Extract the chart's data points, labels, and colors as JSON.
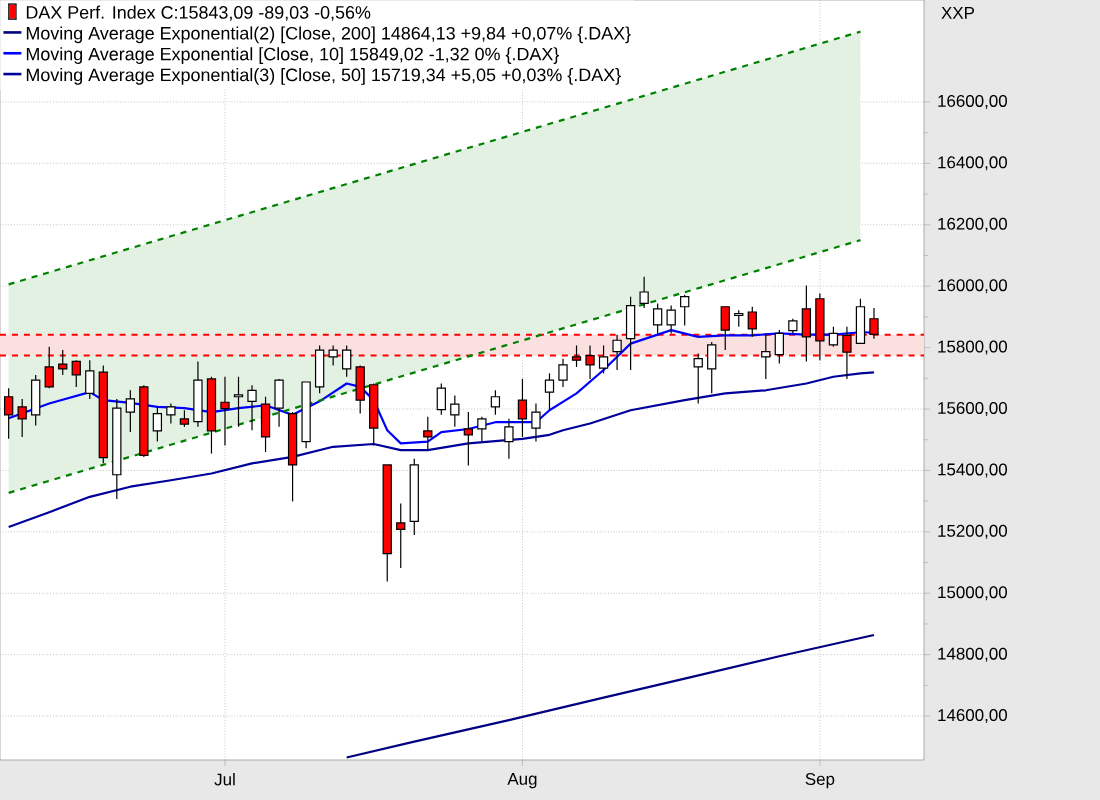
{
  "chart_data": {
    "type": "candlestick",
    "categories": [
      null,
      null,
      null,
      null,
      null,
      null,
      null,
      null,
      null,
      null,
      null,
      null,
      null,
      null,
      null,
      null,
      "Jul",
      null,
      null,
      null,
      null,
      null,
      null,
      null,
      null,
      null,
      null,
      null,
      null,
      null,
      null,
      null,
      null,
      null,
      null,
      null,
      null,
      null,
      "Aug",
      null,
      null,
      null,
      null,
      null,
      null,
      null,
      null,
      null,
      null,
      null,
      null,
      null,
      null,
      null,
      null,
      null,
      null,
      null,
      null,
      null,
      "Sep",
      null,
      null,
      null,
      null
    ],
    "ylim": [
      14457,
      16932
    ],
    "yticks": [
      {
        "value": 14600,
        "label": "14600,00"
      },
      {
        "value": 14800,
        "label": "14800,00"
      },
      {
        "value": 15000,
        "label": "15000,00"
      },
      {
        "value": 15200,
        "label": "15200,00"
      },
      {
        "value": 15400,
        "label": "15400,00"
      },
      {
        "value": 15600,
        "label": "15600,00"
      },
      {
        "value": 15800,
        "label": "15800,00"
      },
      {
        "value": 16000,
        "label": "16000,00"
      },
      {
        "value": 16200,
        "label": "16200,00"
      },
      {
        "value": 16400,
        "label": "16400,00"
      },
      {
        "value": 16600,
        "label": "16600,00"
      }
    ],
    "ylabel": "XXP",
    "grid": true,
    "legend": "top left",
    "series": [
      {
        "name": "DAX Perf. Index C:15843,09 -89,03 -0,56%",
        "colors": [
          "#ff0000",
          "#ff0000",
          "#ffffff",
          "#ff0000",
          "#ff0000",
          "#ff0000",
          "#ffffff",
          "#ff0000",
          "#ffffff",
          "#ffffff",
          "#ff0000",
          "#ffffff",
          "#ffffff",
          "#ff0000",
          "#ffffff",
          "#ff0000",
          "#ff0000",
          "#ffffff",
          "#ffffff",
          "#ff0000",
          "#ffffff",
          "#ff0000",
          "#ffffff",
          "#ffffff",
          "#ffffff",
          "#ffffff",
          "#ff0000",
          "#ff0000",
          "#ff0000",
          "#ff0000",
          "#ffffff",
          "#ff0000",
          "#ffffff",
          "#ffffff",
          "#ff0000",
          "#ffffff",
          "#ffffff",
          "#ffffff",
          "#ff0000",
          "#ffffff",
          "#ffffff",
          "#ffffff",
          "#ff0000",
          "#ff0000",
          "#ffffff",
          "#ffffff",
          "#ffffff",
          "#ffffff",
          "#ffffff",
          "#ffffff",
          "#ffffff",
          "#ffffff",
          "#ffffff",
          "#ff0000",
          "#ffffff",
          "#ff0000",
          "#ffffff",
          "#ffffff",
          "#ffffff",
          "#ff0000",
          "#ff0000",
          "#ffffff",
          "#ff0000",
          "#ffffff",
          "#ff0000"
        ],
        "ohlc": [
          [
            15640,
            15668,
            15503,
            15581
          ],
          [
            15607,
            15633,
            15509,
            15568
          ],
          [
            15581,
            15711,
            15546,
            15694
          ],
          [
            15737,
            15803,
            15668,
            15672
          ],
          [
            15746,
            15792,
            15711,
            15731
          ],
          [
            15755,
            15759,
            15672,
            15711
          ],
          [
            15651,
            15759,
            15633,
            15724
          ],
          [
            15720,
            15742,
            15423,
            15442
          ],
          [
            15386,
            15633,
            15307,
            15603
          ],
          [
            15590,
            15661,
            15525,
            15633
          ],
          [
            15672,
            15677,
            15444,
            15449
          ],
          [
            15529,
            15607,
            15494,
            15585
          ],
          [
            15581,
            15618,
            15553,
            15607
          ],
          [
            15568,
            15596,
            15542,
            15551
          ],
          [
            15559,
            15755,
            15542,
            15694
          ],
          [
            15698,
            15705,
            15455,
            15529
          ],
          [
            15622,
            15705,
            15481,
            15601
          ],
          [
            15640,
            15705,
            15542,
            15646
          ],
          [
            15625,
            15677,
            15531,
            15661
          ],
          [
            15616,
            15640,
            15460,
            15509
          ],
          [
            15603,
            15698,
            15542,
            15694
          ],
          [
            15585,
            15590,
            15299,
            15418
          ],
          [
            15494,
            15688,
            15472,
            15688
          ],
          [
            15672,
            15807,
            15651,
            15792
          ],
          [
            15770,
            15807,
            15742,
            15792
          ],
          [
            15731,
            15807,
            15705,
            15792
          ],
          [
            15737,
            15742,
            15585,
            15629
          ],
          [
            15679,
            15683,
            15481,
            15538
          ],
          [
            15418,
            15418,
            15038,
            15129
          ],
          [
            15229,
            15292,
            15082,
            15208
          ],
          [
            15234,
            15438,
            15190,
            15418
          ],
          [
            15529,
            15575,
            15466,
            15509
          ],
          [
            15598,
            15683,
            15581,
            15668
          ],
          [
            15581,
            15644,
            15542,
            15616
          ],
          [
            15535,
            15590,
            15416,
            15516
          ],
          [
            15535,
            15575,
            15494,
            15568
          ],
          [
            15607,
            15661,
            15581,
            15640
          ],
          [
            15494,
            15568,
            15438,
            15542
          ],
          [
            15629,
            15698,
            15509,
            15568
          ],
          [
            15538,
            15618,
            15494,
            15590
          ],
          [
            15655,
            15716,
            15596,
            15694
          ],
          [
            15694,
            15764,
            15672,
            15744
          ],
          [
            15770,
            15807,
            15737,
            15759
          ],
          [
            15774,
            15807,
            15698,
            15744
          ],
          [
            15733,
            15807,
            15716,
            15770
          ],
          [
            15787,
            15842,
            15727,
            15824
          ],
          [
            15829,
            15966,
            15727,
            15937
          ],
          [
            15944,
            16031,
            15929,
            15981
          ],
          [
            15874,
            15944,
            15846,
            15926
          ],
          [
            15874,
            15937,
            15846,
            15922
          ],
          [
            15933,
            15972,
            15872,
            15966
          ],
          [
            15737,
            15781,
            15618,
            15764
          ],
          [
            15731,
            15818,
            15651,
            15809
          ],
          [
            15933,
            15933,
            15792,
            15857
          ],
          [
            15905,
            15922,
            15868,
            15911
          ],
          [
            15916,
            15933,
            15835,
            15861
          ],
          [
            15770,
            15846,
            15698,
            15787
          ],
          [
            15777,
            15857,
            15748,
            15846
          ],
          [
            15855,
            15894,
            15846,
            15887
          ],
          [
            15926,
            16002,
            15755,
            15835
          ],
          [
            15959,
            15976,
            15759,
            15822
          ],
          [
            15809,
            15868,
            15803,
            15846
          ],
          [
            15840,
            15868,
            15698,
            15785
          ],
          [
            15814,
            15959,
            15814,
            15933
          ],
          [
            15894,
            15929,
            15829,
            15843
          ]
        ]
      },
      {
        "name": "Moving Average Exponential(2) [Close, 200] 14864,13 +9,84 +0,07% {.DAX}",
        "type": "line",
        "color": "#000080",
        "values": [
          null,
          null,
          null,
          null,
          null,
          null,
          null,
          null,
          null,
          null,
          null,
          null,
          null,
          null,
          null,
          null,
          null,
          null,
          null,
          null,
          null,
          null,
          null,
          null,
          null,
          14465,
          null,
          null,
          null,
          null,
          14517,
          null,
          null,
          null,
          null,
          null,
          null,
          14587,
          null,
          null,
          null,
          null,
          null,
          null,
          14660,
          null,
          null,
          null,
          null,
          null,
          14722,
          null,
          null,
          null,
          null,
          null,
          null,
          14795,
          null,
          null,
          null,
          null,
          null,
          null,
          14864
        ]
      },
      {
        "name": "Moving Average Exponential [Close, 10] 15849,02 -1,32 0% {.DAX}",
        "type": "line",
        "color": "#0000ff",
        "values": [
          15570,
          null,
          null,
          15618,
          null,
          null,
          15655,
          15629,
          null,
          15620,
          null,
          15607,
          null,
          15603,
          null,
          15590,
          null,
          15603,
          null,
          15612,
          null,
          15581,
          null,
          15625,
          null,
          15683,
          15672,
          15629,
          15531,
          15488,
          null,
          15494,
          15525,
          null,
          15535,
          null,
          15557,
          null,
          null,
          15557,
          15596,
          null,
          15651,
          null,
          15727,
          null,
          15813,
          null,
          null,
          15857,
          null,
          15835,
          null,
          15840,
          null,
          15840,
          null,
          15846,
          null,
          15842,
          null,
          15842,
          null,
          15850,
          15849
        ]
      },
      {
        "name": "Moving Average Exponential(3) [Close, 50] 15719,34 +5,05 +0,03% {.DAX}",
        "type": "line",
        "color": "#00009a",
        "values": [
          15216,
          null,
          null,
          15264,
          null,
          null,
          15314,
          null,
          null,
          15347,
          null,
          null,
          15368,
          null,
          null,
          15390,
          null,
          null,
          15423,
          null,
          null,
          15444,
          null,
          null,
          15477,
          null,
          null,
          15486,
          null,
          15466,
          null,
          15466,
          null,
          null,
          15488,
          null,
          null,
          null,
          15503,
          null,
          15516,
          15531,
          null,
          15553,
          null,
          null,
          15596,
          null,
          null,
          null,
          15629,
          null,
          null,
          15651,
          null,
          null,
          15661,
          null,
          null,
          15683,
          null,
          15705,
          null,
          15716,
          15719
        ]
      },
      {
        "type": "line",
        "color": "#008000",
        "line_style": "dashed",
        "values": [
          16006,
          null,
          null,
          null,
          null,
          null,
          null,
          null,
          null,
          null,
          null,
          null,
          null,
          null,
          null,
          null,
          null,
          null,
          null,
          null,
          null,
          null,
          null,
          null,
          null,
          null,
          null,
          null,
          null,
          null,
          null,
          null,
          null,
          null,
          null,
          null,
          null,
          null,
          null,
          null,
          null,
          null,
          null,
          null,
          null,
          null,
          null,
          null,
          null,
          null,
          null,
          null,
          null,
          null,
          null,
          null,
          null,
          null,
          null,
          null,
          null,
          null,
          null,
          16829,
          null
        ],
        "lower": [
          15327,
          null,
          null,
          null,
          null,
          null,
          null,
          null,
          null,
          null,
          null,
          null,
          null,
          null,
          null,
          null,
          null,
          null,
          null,
          null,
          null,
          null,
          null,
          null,
          null,
          null,
          null,
          null,
          null,
          null,
          null,
          null,
          null,
          null,
          null,
          null,
          null,
          null,
          null,
          null,
          null,
          null,
          null,
          null,
          null,
          null,
          null,
          null,
          null,
          null,
          null,
          null,
          null,
          null,
          null,
          null,
          null,
          null,
          null,
          null,
          null,
          null,
          null,
          16150,
          null
        ],
        "upper": [
          16006,
          null,
          null,
          null,
          null,
          null,
          null,
          null,
          null,
          null,
          null,
          null,
          null,
          null,
          null,
          null,
          null,
          null,
          null,
          null,
          null,
          null,
          null,
          null,
          null,
          null,
          null,
          null,
          null,
          null,
          null,
          null,
          null,
          null,
          null,
          null,
          null,
          null,
          null,
          null,
          null,
          null,
          null,
          null,
          null,
          null,
          null,
          null,
          null,
          null,
          null,
          null,
          null,
          null,
          null,
          null,
          null,
          null,
          null,
          null,
          null,
          null,
          null,
          16829,
          null
        ]
      },
      {
        "type": "line",
        "color": "#008000",
        "line_style": "dashed",
        "values": [
          15327,
          null,
          null,
          null,
          null,
          null,
          null,
          null,
          null,
          null,
          null,
          null,
          null,
          null,
          null,
          null,
          null,
          null,
          null,
          null,
          null,
          null,
          null,
          null,
          null,
          null,
          null,
          null,
          null,
          null,
          null,
          null,
          null,
          null,
          null,
          null,
          null,
          null,
          null,
          null,
          null,
          null,
          null,
          null,
          null,
          null,
          null,
          null,
          null,
          null,
          null,
          null,
          null,
          null,
          null,
          null,
          null,
          null,
          null,
          null,
          null,
          null,
          null,
          16150,
          null
        ]
      }
    ],
    "ref_lines": [
      {
        "axis": "y",
        "value": 15842,
        "color": "#ff0000",
        "line_style": "dashed"
      },
      {
        "axis": "y",
        "value": 15774,
        "color": "#ff0000",
        "line_style": "dashed"
      }
    ],
    "bands": [
      {
        "axis": "y",
        "from": 15774,
        "to": 15842,
        "color": "#fbe0e0"
      }
    ]
  }
}
